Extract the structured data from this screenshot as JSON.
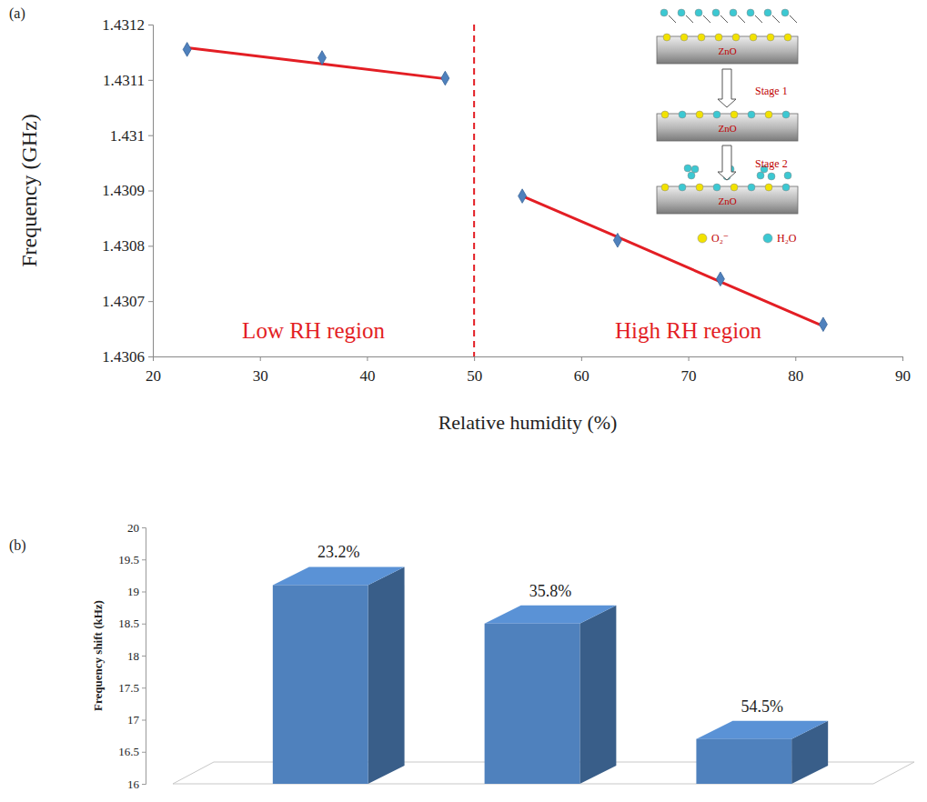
{
  "chart_data": [
    {
      "type": "scatter",
      "panel": "(a)",
      "x_label": "Relative humidity (%)",
      "y_label": "Frequency (GHz)",
      "x": [
        23.2,
        35.8,
        47.3,
        54.5,
        63.4,
        73,
        82.6
      ],
      "series": [
        {
          "type": "scatter",
          "marker": "diamond",
          "color": "#4f81bd",
          "values": [
            1.431155,
            1.43114,
            1.431103,
            1.43089,
            1.43081,
            1.43074,
            1.430658
          ]
        },
        {
          "type": "line",
          "color": "#e31e24",
          "values": [
            1.431158,
            1.431129,
            1.431102,
            null,
            null,
            null,
            null
          ]
        },
        {
          "type": "line",
          "color": "#e31e24",
          "values": [
            null,
            null,
            null,
            1.43089,
            1.430816,
            1.430735,
            1.430655
          ]
        }
      ],
      "xlim": [
        20,
        90
      ],
      "xticks": [
        20,
        30,
        40,
        50,
        60,
        70,
        80,
        90
      ],
      "ylim": [
        1.4306,
        1.4312
      ],
      "yticks": [
        1.4306,
        1.4307,
        1.4308,
        1.4309,
        1.431,
        1.4311,
        1.4312
      ],
      "grid": false,
      "divider_x": 50,
      "annotations": [
        "Low RH region",
        "High RH region"
      ],
      "inset": {
        "substrate": "ZnO",
        "stages": [
          "Stage 1",
          "Stage 2"
        ],
        "species": [
          {
            "label": "O₂⁻",
            "color": "#f2e200"
          },
          {
            "label": "H₂O",
            "color": "#3cc8d2"
          }
        ]
      }
    },
    {
      "type": "bar",
      "panel": "(b)",
      "y_label": "Frequency shift (kHz)",
      "categories": [
        "23.2%",
        "35.8%",
        "54.5%"
      ],
      "values": [
        19.1,
        18.5,
        16.7
      ],
      "color": "#4f81bd",
      "ylim": [
        16,
        20
      ],
      "yticks": [
        16,
        16.5,
        17,
        17.5,
        18,
        18.5,
        19,
        19.5,
        20
      ],
      "grid": false,
      "tick_labels": "y"
    }
  ]
}
